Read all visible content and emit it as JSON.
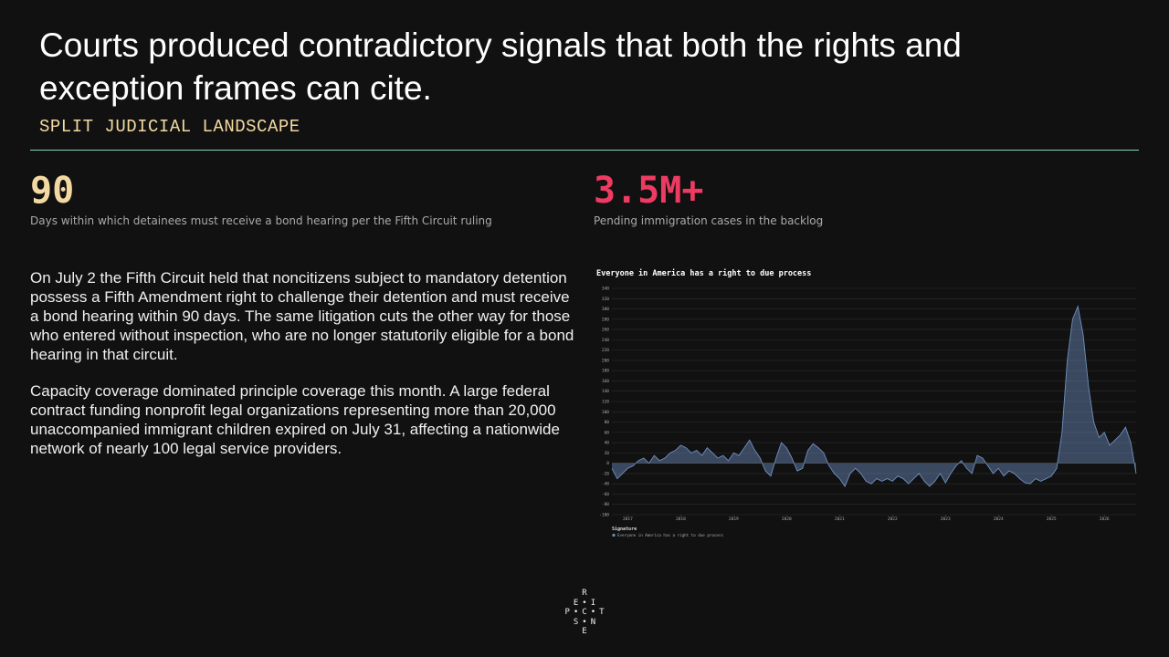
{
  "header": {
    "title": "Courts produced contradictory signals that both the rights and exception frames can cite.",
    "subtitle": "SPLIT JUDICIAL LANDSCAPE"
  },
  "stats": [
    {
      "value": "90",
      "label": "Days within which detainees must receive a bond hearing per the Fifth Circuit ruling",
      "color": "#f3d9a1"
    },
    {
      "value": "3.5M+",
      "label": "Pending immigration cases in the backlog",
      "color": "#ee3b62"
    }
  ],
  "paragraphs": [
    "On July 2 the Fifth Circuit held that noncitizens subject to mandatory detention possess a Fifth Amendment right to challenge their detention and must receive a bond hearing within 90 days. The same litigation cuts the other way for those who entered without inspection, who are no longer statutorily eligible for a bond hearing in that circuit.",
    "Capacity coverage dominated principle coverage this month. A large federal contract funding nonprofit legal organizations representing more than 20,000 unaccompanied immigrant children expired on July 31, affecting a nationwide network of nearly 100 legal service providers."
  ],
  "chart": {
    "type": "area",
    "title": "Everyone in America has a right to due process",
    "legend_title": "Signature",
    "x": [
      2016.7,
      2016.8,
      2016.9,
      2017.0,
      2017.1,
      2017.2,
      2017.3,
      2017.4,
      2017.5,
      2017.6,
      2017.7,
      2017.8,
      2017.9,
      2018.0,
      2018.1,
      2018.2,
      2018.3,
      2018.4,
      2018.5,
      2018.6,
      2018.7,
      2018.8,
      2018.9,
      2019.0,
      2019.1,
      2019.2,
      2019.3,
      2019.4,
      2019.5,
      2019.6,
      2019.7,
      2019.8,
      2019.9,
      2020.0,
      2020.1,
      2020.2,
      2020.3,
      2020.4,
      2020.5,
      2020.6,
      2020.7,
      2020.8,
      2020.9,
      2021.0,
      2021.1,
      2021.2,
      2021.3,
      2021.4,
      2021.5,
      2021.6,
      2021.7,
      2021.8,
      2021.9,
      2022.0,
      2022.1,
      2022.2,
      2022.3,
      2022.4,
      2022.5,
      2022.6,
      2022.7,
      2022.8,
      2022.9,
      2023.0,
      2023.1,
      2023.2,
      2023.3,
      2023.4,
      2023.5,
      2023.6,
      2023.7,
      2023.8,
      2023.9,
      2024.0,
      2024.1,
      2024.2,
      2024.3,
      2024.4,
      2024.5,
      2024.6,
      2024.7,
      2024.8,
      2024.9,
      2025.0,
      2025.1,
      2025.2,
      2025.3,
      2025.4,
      2025.5,
      2025.6,
      2025.7,
      2025.8,
      2025.9,
      2026.0,
      2026.1,
      2026.2,
      2026.3,
      2026.4,
      2026.5,
      2026.6
    ],
    "series": [
      {
        "name": "Everyone in America has a right to due process",
        "color": "#6f8fc0",
        "values": [
          -10,
          -30,
          -20,
          -10,
          -5,
          5,
          10,
          0,
          15,
          5,
          10,
          20,
          25,
          35,
          30,
          20,
          25,
          15,
          30,
          20,
          10,
          15,
          5,
          20,
          15,
          30,
          45,
          25,
          10,
          -15,
          -25,
          10,
          40,
          30,
          10,
          -15,
          -10,
          25,
          38,
          30,
          20,
          -5,
          -20,
          -30,
          -45,
          -20,
          -10,
          -20,
          -35,
          -40,
          -30,
          -35,
          -30,
          -35,
          -25,
          -30,
          -40,
          -30,
          -20,
          -35,
          -45,
          -35,
          -20,
          -38,
          -20,
          -5,
          5,
          -10,
          -20,
          15,
          10,
          -5,
          -20,
          -10,
          -25,
          -15,
          -20,
          -30,
          -38,
          -40,
          -30,
          -35,
          -30,
          -25,
          -10,
          60,
          200,
          280,
          305,
          250,
          150,
          80,
          50,
          60,
          35,
          45,
          55,
          70,
          40,
          -20
        ]
      }
    ],
    "xlim": [
      2016.7,
      2026.6
    ],
    "xticks": [
      2017,
      2018,
      2019,
      2020,
      2021,
      2022,
      2023,
      2024,
      2025,
      2026
    ],
    "ylim": [
      -100,
      340
    ],
    "yticks": [
      -100,
      -80,
      -60,
      -40,
      -20,
      0,
      20,
      40,
      60,
      80,
      100,
      120,
      140,
      160,
      180,
      200,
      220,
      240,
      260,
      280,
      300,
      320,
      340
    ],
    "grid": true
  },
  "logo": {
    "rows": [
      [
        "R"
      ],
      [
        "E",
        "I"
      ],
      [
        "P",
        "C",
        "T"
      ],
      [
        "S",
        "N"
      ],
      [
        "E"
      ]
    ]
  }
}
